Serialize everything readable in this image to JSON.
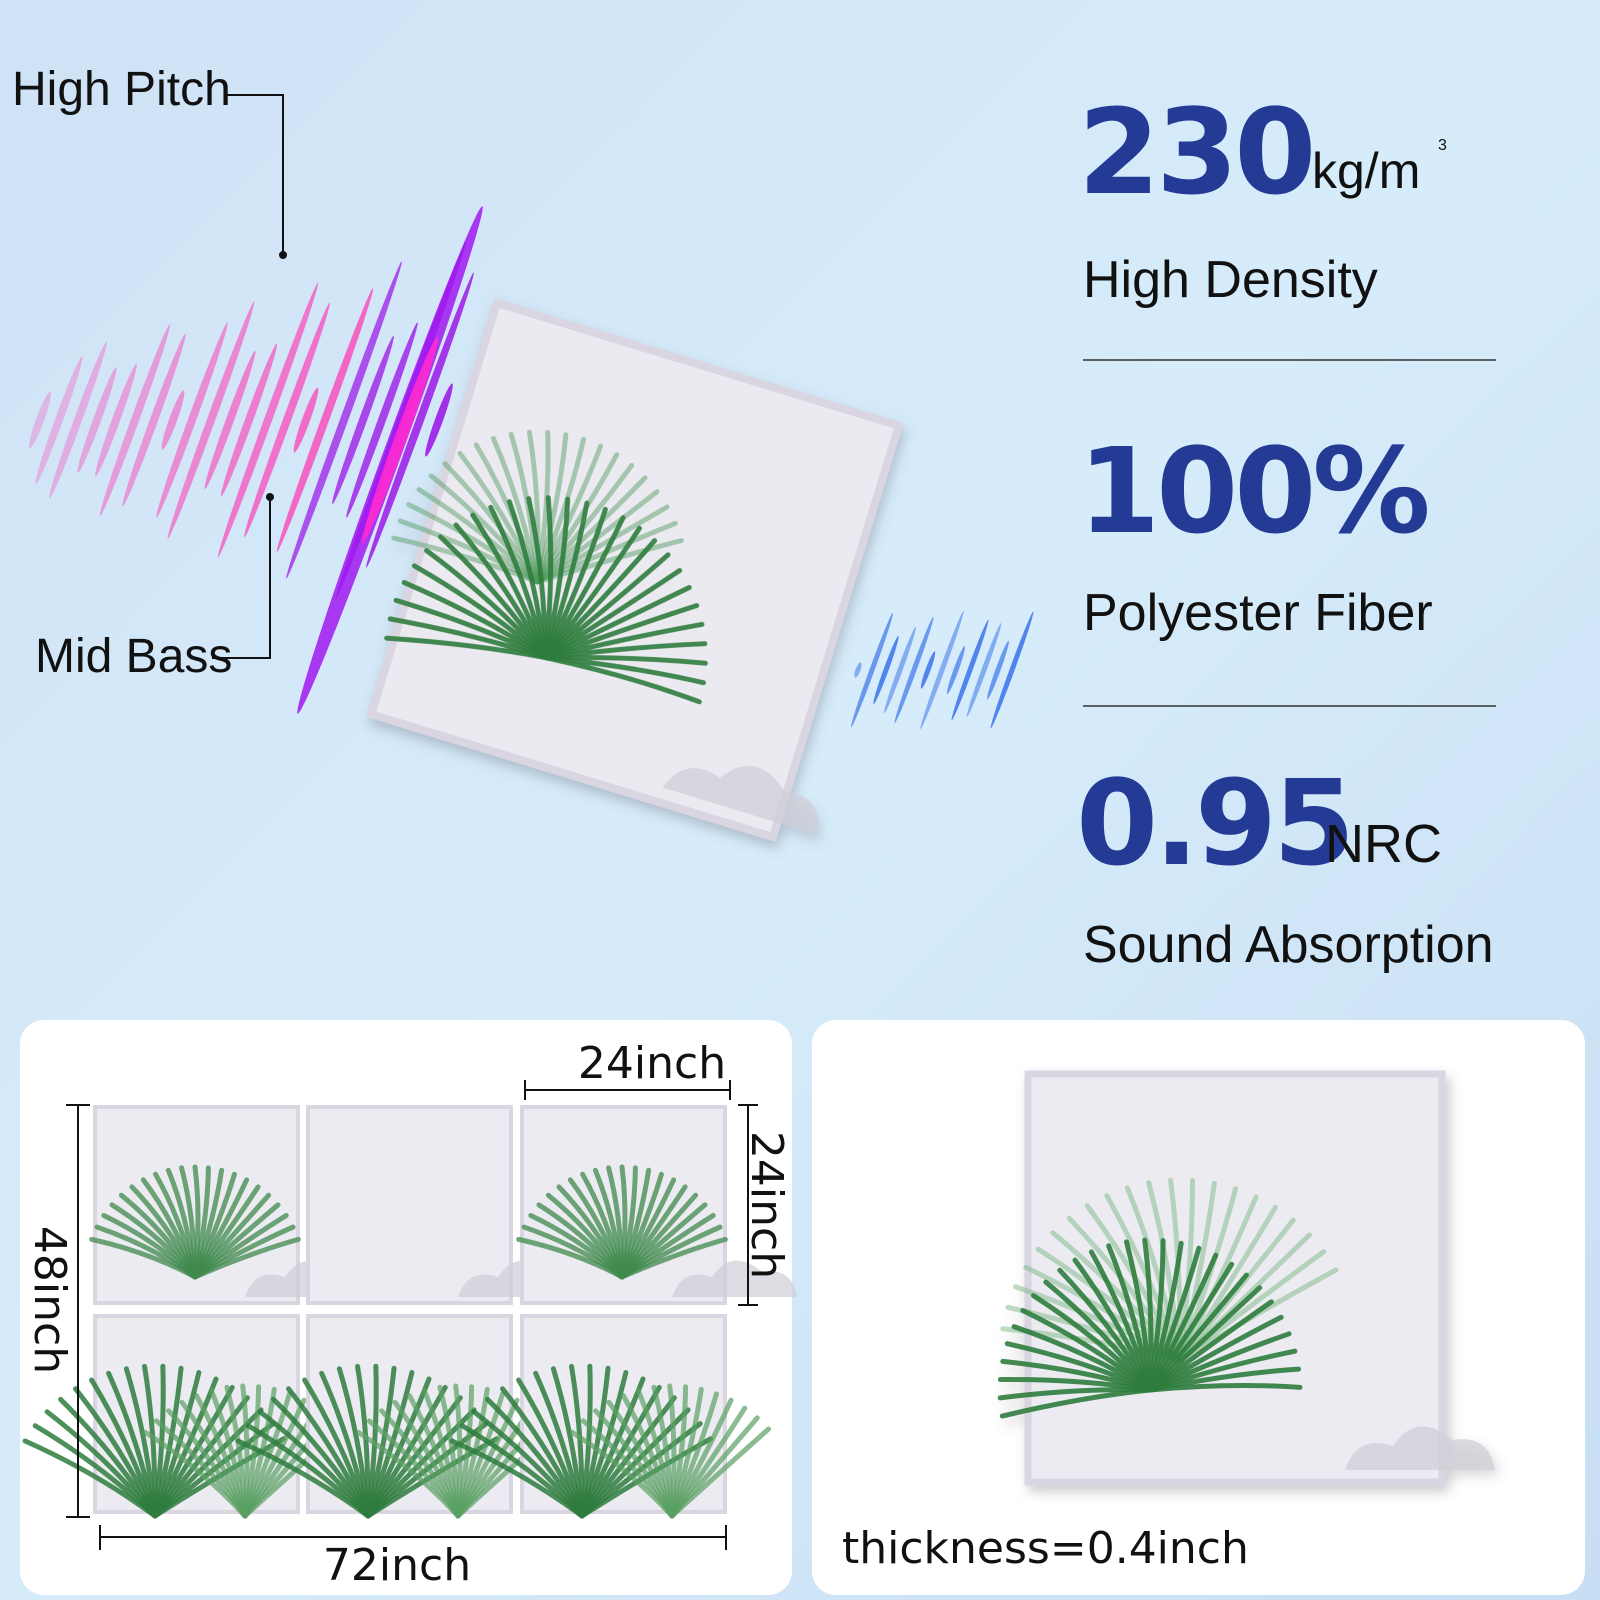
{
  "callouts": {
    "high_pitch": "High Pitch",
    "mid_bass": "Mid Bass"
  },
  "specs": [
    {
      "value": "230",
      "unit": "kg/m",
      "unit_sup": "3",
      "label": "High Density"
    },
    {
      "value": "100%",
      "label": "Polyester Fiber"
    },
    {
      "value": "0.95",
      "unit": "NRC",
      "label": "Sound Absorption"
    }
  ],
  "layout_card": {
    "panel_width": "24inch",
    "panel_height": "24inch",
    "total_height": "48inch",
    "total_width": "72inch"
  },
  "single_card": {
    "thickness": "thickness=0.4inch"
  }
}
